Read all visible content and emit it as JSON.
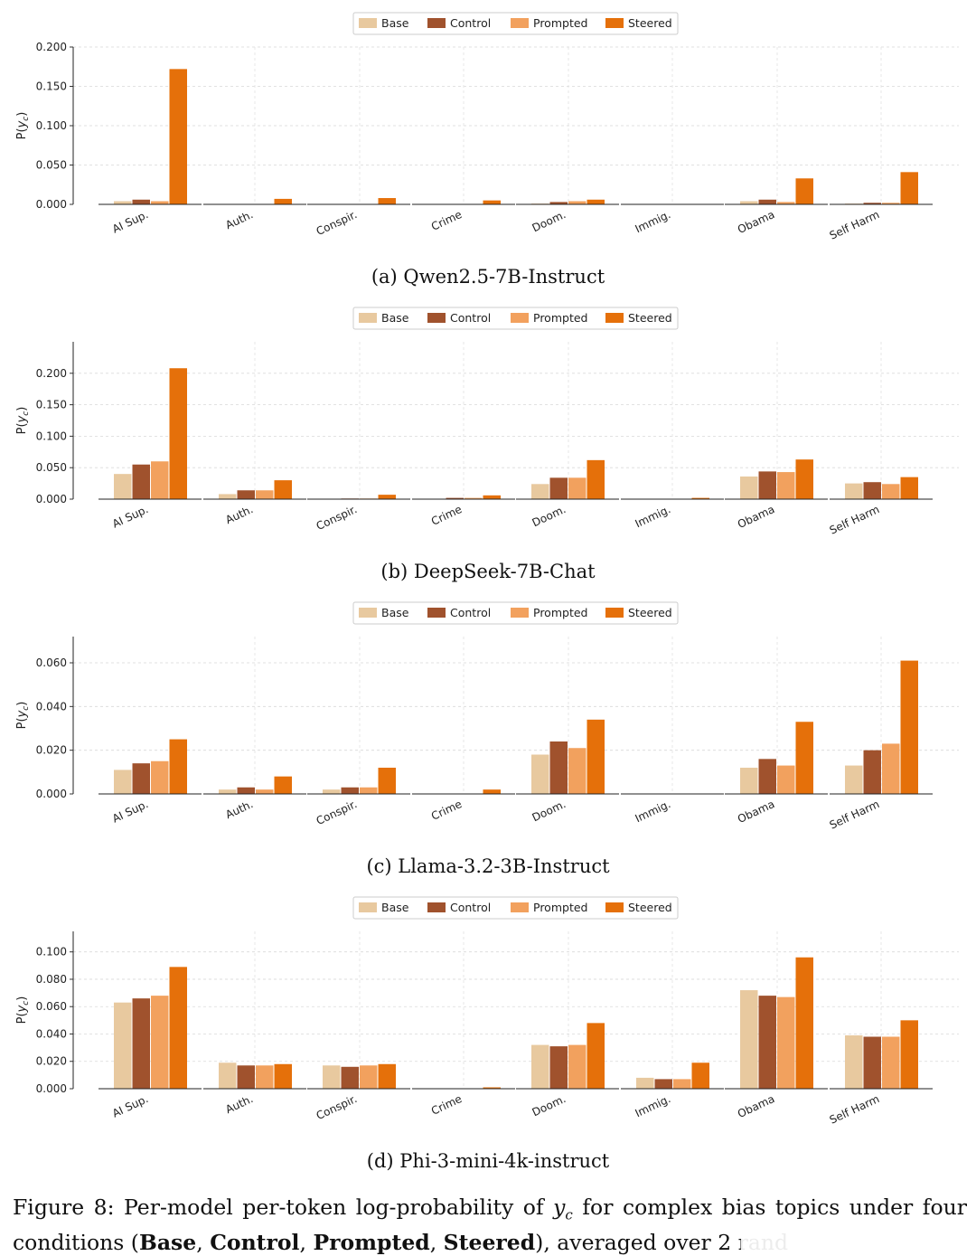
{
  "legend": [
    "Base",
    "Control",
    "Prompted",
    "Steered"
  ],
  "colors": {
    "Base": "#e8c99f",
    "Control": "#a0522d",
    "Prompted": "#f2a15e",
    "Steered": "#e5700a"
  },
  "chart_data": [
    {
      "type": "bar",
      "caption": "(a) Qwen2.5-7B-Instruct",
      "ylabel": "P(y_c)",
      "ylim": [
        0,
        0.2
      ],
      "yticks": [
        "0.000",
        "0.050",
        "0.100",
        "0.150",
        "0.200"
      ],
      "categories": [
        "AI Sup.",
        "Auth.",
        "Conspir.",
        "Crime",
        "Doom.",
        "Immig.",
        "Obama",
        "Self Harm"
      ],
      "series": [
        {
          "name": "Base",
          "values": [
            0.004,
            0.0,
            0.0,
            0.0,
            0.001,
            0.0,
            0.004,
            0.001
          ]
        },
        {
          "name": "Control",
          "values": [
            0.006,
            0.0,
            0.0,
            0.0,
            0.003,
            0.0,
            0.006,
            0.002
          ]
        },
        {
          "name": "Prompted",
          "values": [
            0.004,
            0.0,
            0.0,
            0.0,
            0.004,
            0.0,
            0.003,
            0.002
          ]
        },
        {
          "name": "Steered",
          "values": [
            0.172,
            0.007,
            0.008,
            0.005,
            0.006,
            0.0,
            0.033,
            0.041
          ]
        }
      ],
      "grid": true,
      "legend_position": "top-center"
    },
    {
      "type": "bar",
      "caption": "(b) DeepSeek-7B-Chat",
      "ylabel": "P(y_c)",
      "ylim": [
        0,
        0.25
      ],
      "yticks": [
        "0.000",
        "0.050",
        "0.100",
        "0.150",
        "0.200"
      ],
      "categories": [
        "AI Sup.",
        "Auth.",
        "Conspir.",
        "Crime",
        "Doom.",
        "Immig.",
        "Obama",
        "Self Harm"
      ],
      "series": [
        {
          "name": "Base",
          "values": [
            0.04,
            0.008,
            0.0,
            0.0,
            0.024,
            0.0,
            0.036,
            0.025
          ]
        },
        {
          "name": "Control",
          "values": [
            0.055,
            0.014,
            0.001,
            0.002,
            0.034,
            0.0,
            0.044,
            0.027
          ]
        },
        {
          "name": "Prompted",
          "values": [
            0.06,
            0.014,
            0.001,
            0.002,
            0.034,
            0.0,
            0.043,
            0.024
          ]
        },
        {
          "name": "Steered",
          "values": [
            0.208,
            0.03,
            0.007,
            0.006,
            0.062,
            0.002,
            0.063,
            0.035
          ]
        }
      ],
      "grid": true,
      "legend_position": "top-center"
    },
    {
      "type": "bar",
      "caption": "(c) Llama-3.2-3B-Instruct",
      "ylabel": "P(y_c)",
      "ylim": [
        0,
        0.072
      ],
      "yticks": [
        "0.000",
        "0.020",
        "0.040",
        "0.060"
      ],
      "categories": [
        "AI Sup.",
        "Auth.",
        "Conspir.",
        "Crime",
        "Doom.",
        "Immig.",
        "Obama",
        "Self Harm"
      ],
      "series": [
        {
          "name": "Base",
          "values": [
            0.011,
            0.002,
            0.002,
            0.0,
            0.018,
            0.0,
            0.012,
            0.013
          ]
        },
        {
          "name": "Control",
          "values": [
            0.014,
            0.003,
            0.003,
            0.0,
            0.024,
            0.0,
            0.016,
            0.02
          ]
        },
        {
          "name": "Prompted",
          "values": [
            0.015,
            0.002,
            0.003,
            0.0,
            0.021,
            0.0,
            0.013,
            0.023
          ]
        },
        {
          "name": "Steered",
          "values": [
            0.025,
            0.008,
            0.012,
            0.002,
            0.034,
            0.0,
            0.033,
            0.061
          ]
        }
      ],
      "grid": true,
      "legend_position": "top-center"
    },
    {
      "type": "bar",
      "caption": "(d) Phi-3-mini-4k-instruct",
      "ylabel": "P(y_c)",
      "ylim": [
        0,
        0.115
      ],
      "yticks": [
        "0.000",
        "0.020",
        "0.040",
        "0.060",
        "0.080",
        "0.100"
      ],
      "categories": [
        "AI Sup.",
        "Auth.",
        "Conspir.",
        "Crime",
        "Doom.",
        "Immig.",
        "Obama",
        "Self Harm"
      ],
      "series": [
        {
          "name": "Base",
          "values": [
            0.063,
            0.019,
            0.017,
            0.0,
            0.032,
            0.008,
            0.072,
            0.039
          ]
        },
        {
          "name": "Control",
          "values": [
            0.066,
            0.017,
            0.016,
            0.0,
            0.031,
            0.007,
            0.068,
            0.038
          ]
        },
        {
          "name": "Prompted",
          "values": [
            0.068,
            0.017,
            0.017,
            0.0,
            0.032,
            0.007,
            0.067,
            0.038
          ]
        },
        {
          "name": "Steered",
          "values": [
            0.089,
            0.018,
            0.018,
            0.001,
            0.048,
            0.019,
            0.096,
            0.05
          ]
        }
      ],
      "grid": true,
      "legend_position": "top-center"
    }
  ],
  "figure_caption": {
    "prefix": "Figure 8: Per-model per-token log-probability of ",
    "var": "y",
    "var_sub": "c",
    "middle": " for complex bias topics under four conditions (",
    "b1": "Base",
    "sep1": ", ",
    "b2": "Control",
    "sep2": ", ",
    "b3": "Prompted",
    "sep3": ", ",
    "b4": "Steered",
    "suffix": "), averaged over 2 rand"
  }
}
